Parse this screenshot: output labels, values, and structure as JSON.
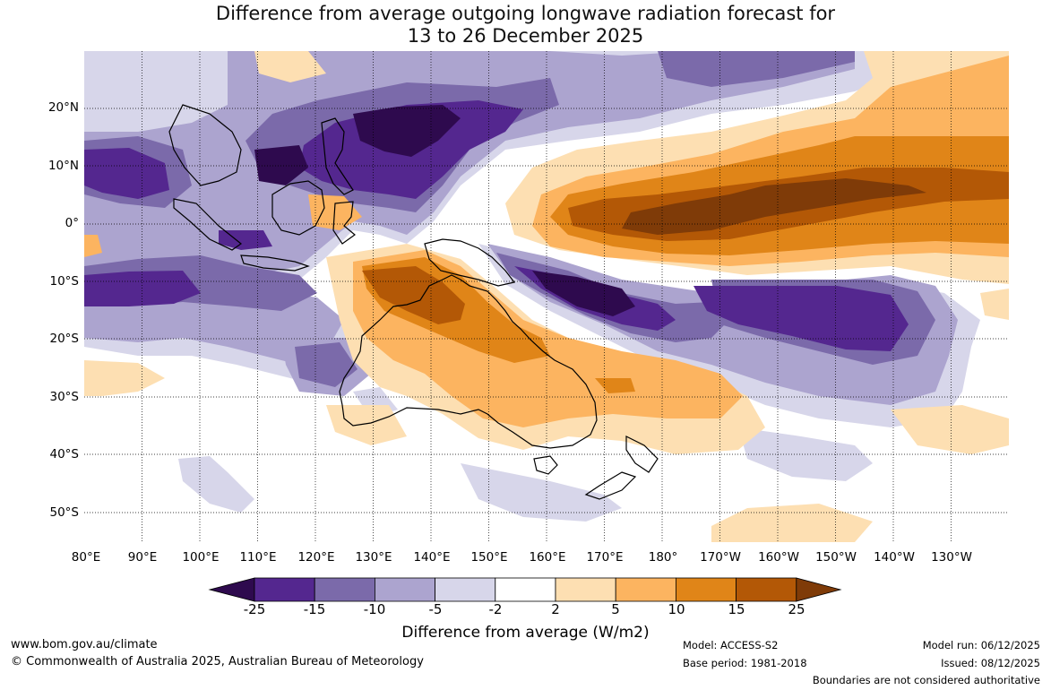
{
  "title": {
    "line1": "Difference from average outgoing longwave radiation forecast for",
    "line2": "13 to 26 December 2025"
  },
  "map": {
    "lat_labels": [
      "20°N",
      "10°N",
      "0°",
      "10°S",
      "20°S",
      "30°S",
      "40°S",
      "50°S"
    ],
    "lon_labels": [
      "80°E",
      "90°E",
      "100°E",
      "110°E",
      "120°E",
      "130°E",
      "140°E",
      "150°E",
      "160°E",
      "170°E",
      "180°",
      "170°W",
      "160°W",
      "150°W",
      "140°W",
      "130°W"
    ]
  },
  "colorbar": {
    "ticks": [
      "-25",
      "-15",
      "-10",
      "-5",
      "-2",
      "2",
      "5",
      "10",
      "15",
      "25"
    ],
    "label": "Difference from average (W/m2)",
    "colors": {
      "below_-25": "#2e0a4e",
      "-25_-15": "#54278f",
      "-15_-10": "#7b6aaa",
      "-10_-5": "#aca4cf",
      "-5_-2": "#d7d6ea",
      "-2_2": "#ffffff",
      "2_5": "#fddfb2",
      "5_10": "#fcb460",
      "10_15": "#e08518",
      "15_25": "#b35806",
      "above_25": "#7f3b08"
    }
  },
  "footer": {
    "website": "www.bom.gov.au/climate",
    "copyright": "© Commonwealth of Australia 2025, Australian Bureau of Meteorology",
    "model": "Model: ACCESS-S2",
    "base_period": "Base period: 1981-2018",
    "model_run": "Model run: 06/12/2025",
    "issued": "Issued: 08/12/2025",
    "disclaimer": "Boundaries are not considered authoritative"
  }
}
